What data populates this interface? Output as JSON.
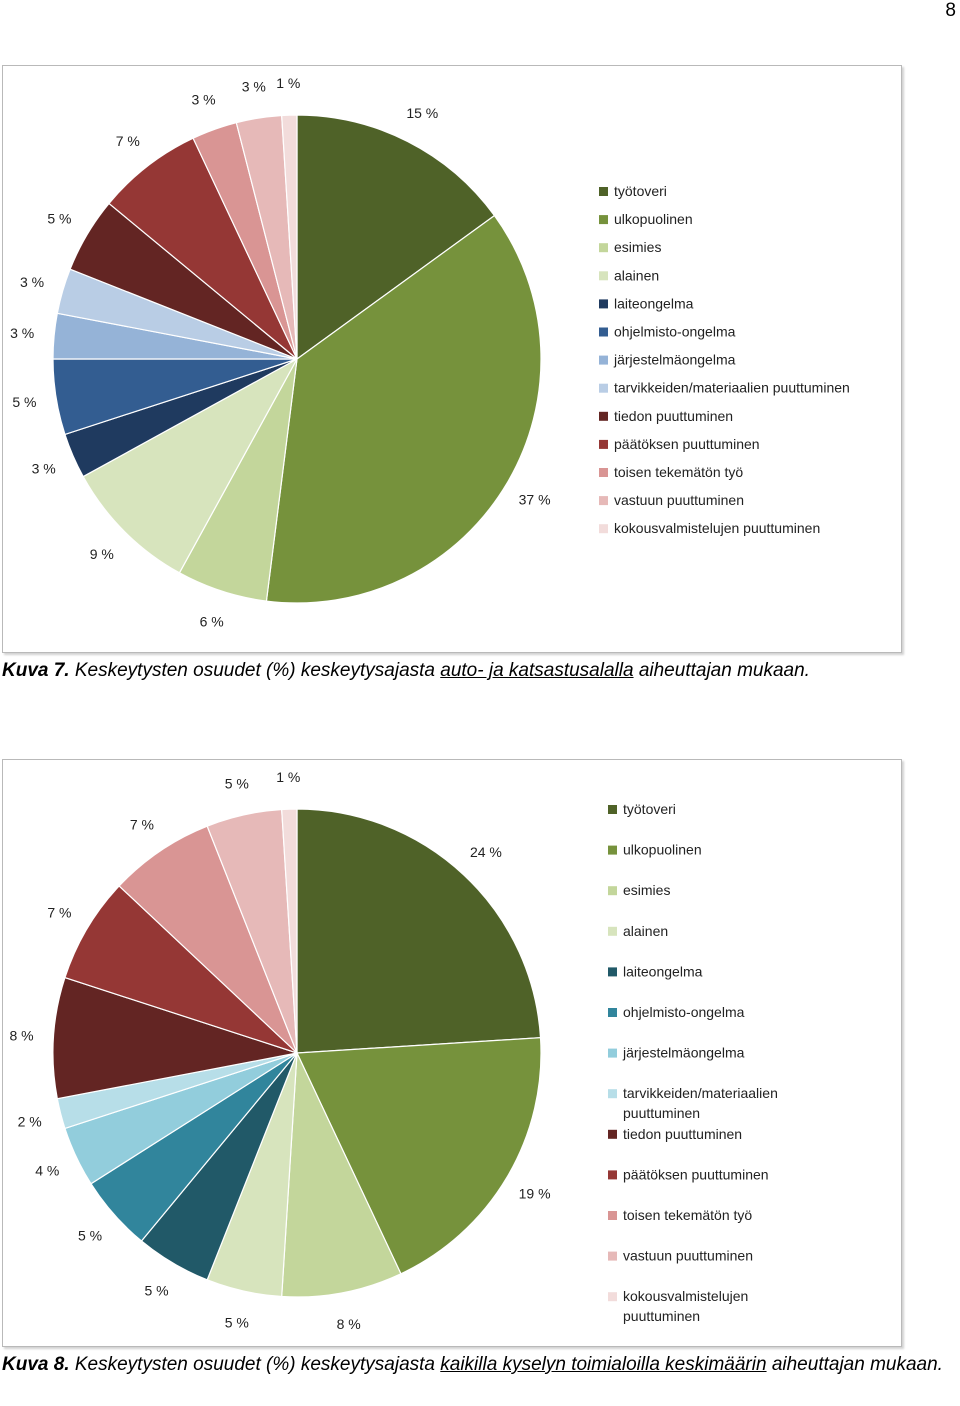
{
  "page_number": "8",
  "chart_data": [
    {
      "type": "pie",
      "start_angle": "12 o'clock, clockwise",
      "categories": [
        "työtoveri",
        "ulkopuolinen",
        "esimies",
        "alainen",
        "laiteongelma",
        "ohjelmisto-ongelma",
        "järjestelmäongelma",
        "tarvikkeiden/materiaalien puuttuminen",
        "tiedon puuttuminen",
        "päätöksen puuttuminen",
        "toisen tekemätön työ",
        "vastuun puuttuminen",
        "kokousvalmistelujen puuttuminen"
      ],
      "values": [
        15,
        37,
        6,
        9,
        3,
        5,
        3,
        3,
        5,
        7,
        3,
        3,
        1
      ],
      "data_labels": [
        "15 %",
        "37 %",
        "6 %",
        "9 %",
        "3 %",
        "5 %",
        "3 %",
        "3 %",
        "5 %",
        "7 %",
        "3 %",
        "3 %",
        "1 %"
      ],
      "colors": [
        "#4f6228",
        "#76923c",
        "#c3d69b",
        "#d7e4bd",
        "#1f3a5f",
        "#335d91",
        "#95b3d7",
        "#b9cde5",
        "#632523",
        "#953735",
        "#d99594",
        "#e6b9b8",
        "#f2dcdb"
      ],
      "legend": "right"
    },
    {
      "type": "pie",
      "start_angle": "12 o'clock, clockwise",
      "categories": [
        "työtoveri",
        "ulkopuolinen",
        "esimies",
        "alainen",
        "laiteongelma",
        "ohjelmisto-ongelma",
        "järjestelmäongelma",
        "tarvikkeiden/materiaalien puuttuminen",
        "tiedon puuttuminen",
        "päätöksen puuttuminen",
        "toisen tekemätön työ",
        "vastuun puuttuminen",
        "kokousvalmistelujen puuttuminen"
      ],
      "values": [
        24,
        19,
        8,
        5,
        5,
        5,
        4,
        2,
        8,
        7,
        7,
        5,
        1
      ],
      "data_labels": [
        "24 %",
        "19 %",
        "8 %",
        "5 %",
        "5 %",
        "5 %",
        "4 %",
        "2 %",
        "8 %",
        "7 %",
        "7 %",
        "5 %",
        "1 %"
      ],
      "colors": [
        "#4f6228",
        "#76923c",
        "#c3d69b",
        "#d7e4bd",
        "#215968",
        "#31859c",
        "#92cddc",
        "#b7dee8",
        "#632523",
        "#953735",
        "#d99594",
        "#e6b9b8",
        "#f2dcdb"
      ],
      "legend": "right"
    }
  ],
  "captions": [
    {
      "label": "Kuva 7.",
      "text": " Keskeytysten osuudet (%) keskeytysajasta ",
      "underlined": "auto- ja katsastusalalla",
      "after": " aiheuttajan mukaan."
    },
    {
      "label": "Kuva 8.",
      "text": " Keskeytysten osuudet (%) keskeytysajasta ",
      "underlined": "kaikilla kyselyn toimialoilla keskimäärin",
      "after": " aiheuttajan mukaan."
    }
  ]
}
